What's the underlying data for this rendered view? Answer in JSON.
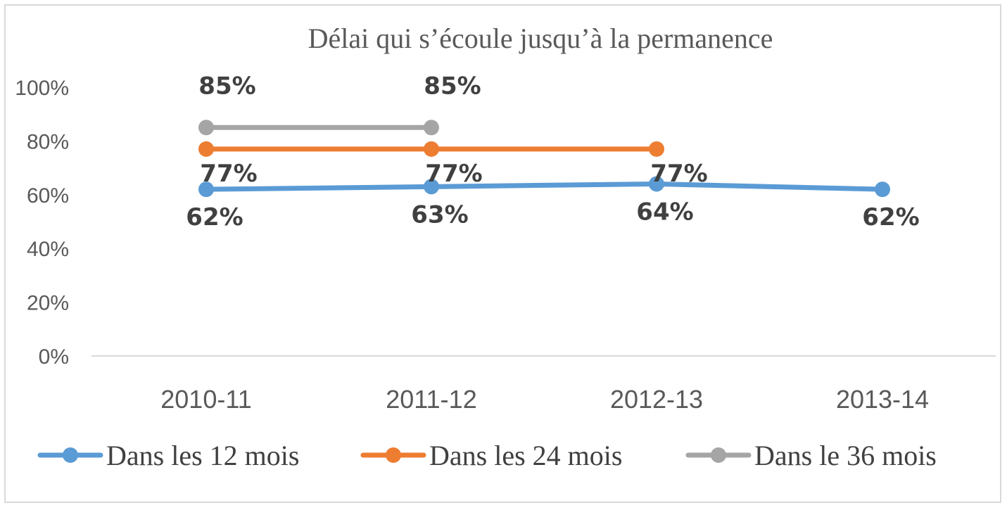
{
  "chart_data": {
    "type": "line",
    "title": "Délai qui s’écoule jusqu’à la permanence",
    "xlabel": "",
    "ylabel": "",
    "categories": [
      "2010-11",
      "2011-12",
      "2012-13",
      "2013-14"
    ],
    "ylim": [
      0,
      100
    ],
    "yticks": [
      "100%",
      "80%",
      "60%",
      "40%",
      "20%",
      "0%"
    ],
    "ytick_values": [
      100,
      80,
      60,
      40,
      20,
      0
    ],
    "grid": false,
    "legend_position": "bottom",
    "series": [
      {
        "name": "Dans les 12 mois",
        "color": "#5b9bd5",
        "values": [
          62,
          63,
          64,
          62
        ],
        "labels": [
          "62%",
          "63%",
          "64%",
          "62%"
        ]
      },
      {
        "name": "Dans les 24 mois",
        "color": "#ed7d31",
        "values": [
          77,
          77,
          77,
          null
        ],
        "labels": [
          "77%",
          "77%",
          "77%",
          null
        ]
      },
      {
        "name": "Dans le 36 mois",
        "color": "#a5a5a5",
        "values": [
          85,
          85,
          null,
          null
        ],
        "labels": [
          "85%",
          "85%",
          null,
          null
        ]
      }
    ]
  }
}
